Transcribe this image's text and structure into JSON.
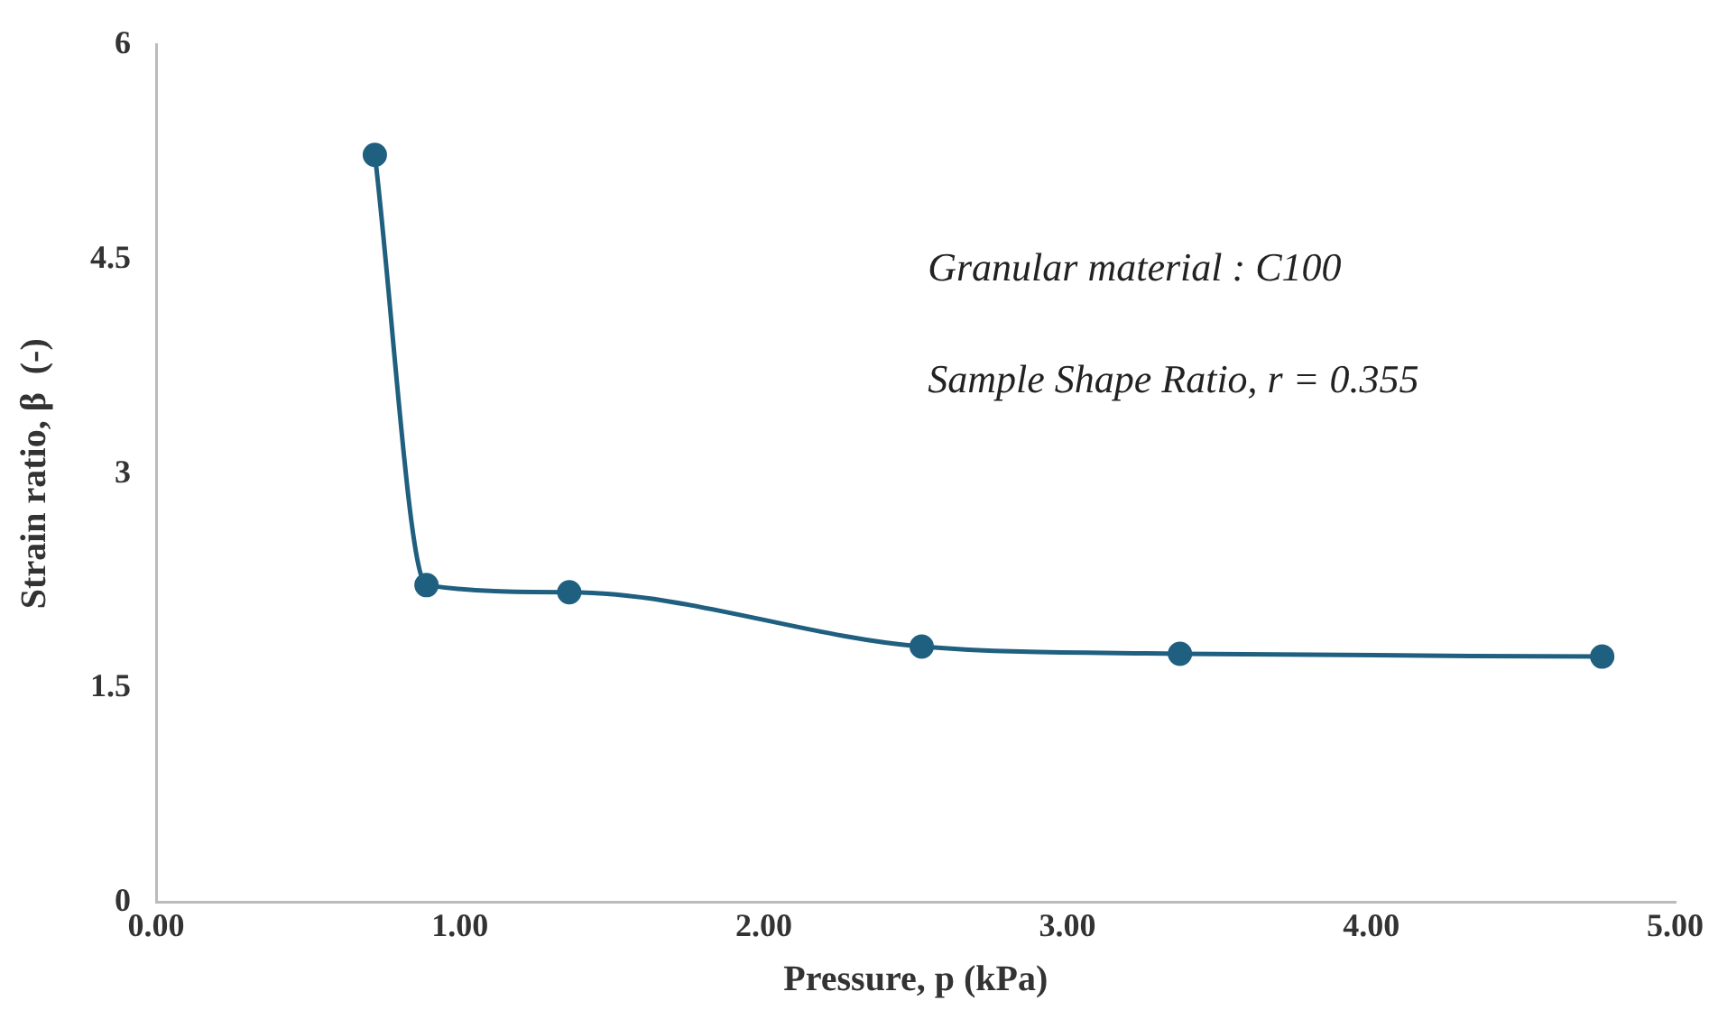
{
  "chart_data": {
    "type": "line",
    "xlabel": "Pressure, p (kPa)",
    "ylabel": "Strain ratio, β  (-)",
    "x": [
      0.72,
      0.89,
      1.36,
      2.52,
      3.37,
      4.76
    ],
    "series": [
      {
        "color": "#1f5f7f",
        "values": [
          5.23,
          2.22,
          2.17,
          1.79,
          1.74,
          1.72
        ]
      }
    ],
    "xlim": [
      0,
      5
    ],
    "xticks": [
      {
        "value": 0,
        "label": "0.00"
      },
      {
        "value": 1,
        "label": "1.00"
      },
      {
        "value": 2,
        "label": "2.00"
      },
      {
        "value": 3,
        "label": "3.00"
      },
      {
        "value": 4,
        "label": "4.00"
      },
      {
        "value": 5,
        "label": "5.00"
      }
    ],
    "ylim": [
      0,
      6
    ],
    "yticks": [
      0,
      1.5,
      3,
      4.5,
      6
    ],
    "grid": false,
    "legend": false,
    "marker": "circle",
    "line_style": "solid",
    "annotations": [
      "Granular material : C100",
      "Sample Shape Ratio, r = 0.355"
    ]
  }
}
